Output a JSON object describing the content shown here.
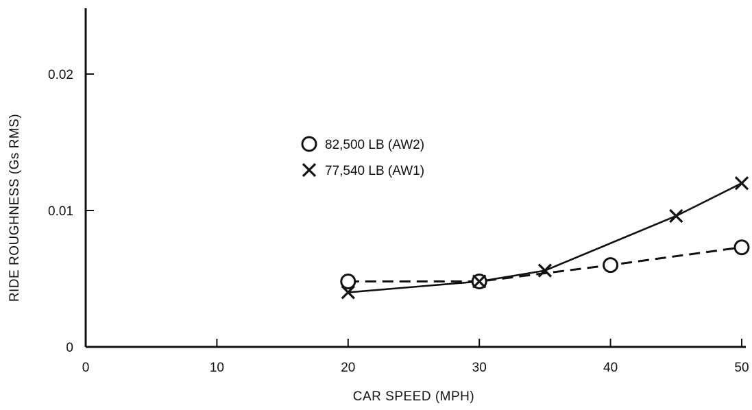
{
  "chart_data": {
    "type": "line",
    "title": "",
    "xlabel": "CAR SPEED (MPH)",
    "ylabel": "RIDE ROUGHNESS (Gs RMS)",
    "xlim": [
      0,
      50
    ],
    "ylim": [
      0,
      0.025
    ],
    "x_ticks": [
      0,
      10,
      20,
      30,
      40,
      50
    ],
    "x_tick_labels": [
      "0",
      "10",
      "20",
      "30",
      "40",
      "50"
    ],
    "y_ticks": [
      0,
      0.01,
      0.02
    ],
    "y_tick_labels": [
      "0",
      "0.01",
      "0.02"
    ],
    "grid": false,
    "legend_position": "upper-middle",
    "series": [
      {
        "name": "82,500 LB (AW2)",
        "marker": "circle",
        "line_style": "dashed",
        "points": [
          {
            "x": 20,
            "y": 0.0048
          },
          {
            "x": 30,
            "y": 0.0048
          },
          {
            "x": 40,
            "y": 0.006
          },
          {
            "x": 50,
            "y": 0.0073
          }
        ]
      },
      {
        "name": "77,540 LB (AW1)",
        "marker": "x",
        "line_style": "solid",
        "points": [
          {
            "x": 20,
            "y": 0.004
          },
          {
            "x": 30,
            "y": 0.0048
          },
          {
            "x": 35,
            "y": 0.0056
          },
          {
            "x": 45,
            "y": 0.0096
          },
          {
            "x": 50,
            "y": 0.012
          }
        ]
      }
    ]
  }
}
